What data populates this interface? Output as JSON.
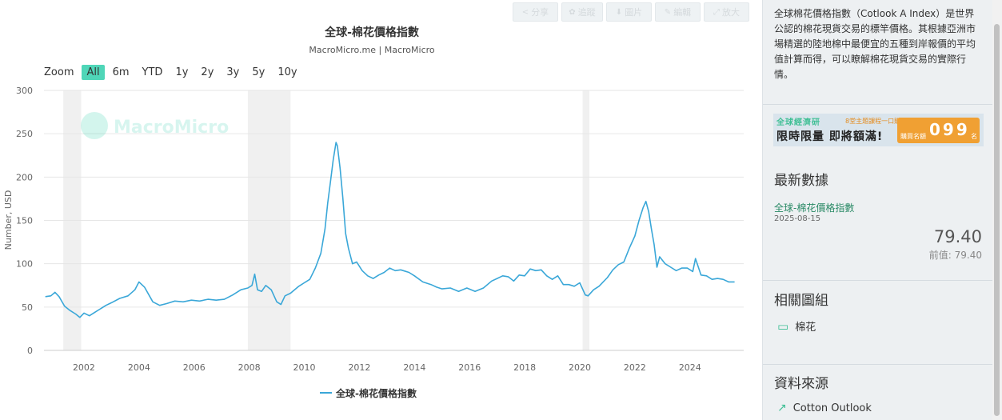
{
  "toolbar": {
    "buttons": [
      {
        "label": "分享",
        "icon": "share-icon"
      },
      {
        "label": "追蹤",
        "icon": "gear-icon"
      },
      {
        "label": "圖片",
        "icon": "download-icon"
      },
      {
        "label": "編輯",
        "icon": "pencil-icon"
      },
      {
        "label": "放大",
        "icon": "expand-icon"
      }
    ]
  },
  "zoom": {
    "label": "Zoom",
    "options": [
      "All",
      "6m",
      "YTD",
      "1y",
      "2y",
      "3y",
      "5y",
      "10y"
    ],
    "active": "All"
  },
  "watermark": "MacroMicro",
  "colors": {
    "line": "#3aa7d8",
    "accent": "#4fd6b8",
    "recession": "#f0f0f0",
    "latest": "#2a8a66"
  },
  "chart_data": {
    "type": "line",
    "title": "全球-棉花價格指數",
    "subtitle": "MacroMicro.me | MacroMicro",
    "ylabel": "Number, USD",
    "xlabel": "",
    "ylim": [
      0,
      300
    ],
    "yticks": [
      0,
      50,
      100,
      150,
      200,
      250,
      300
    ],
    "xlim": [
      2000.55,
      2025.95
    ],
    "xticks": [
      "2002",
      "2004",
      "2006",
      "2008",
      "2010",
      "2012",
      "2014",
      "2016",
      "2018",
      "2020",
      "2022",
      "2024"
    ],
    "grid": true,
    "legend": "bottom-center",
    "recession_bands": [
      [
        2001.25,
        2001.9
      ],
      [
        2007.95,
        2009.5
      ],
      [
        2020.1,
        2020.35
      ]
    ],
    "series": [
      {
        "name": "全球-棉花價格指數",
        "x": [
          2000.6,
          2000.8,
          2000.95,
          2001.1,
          2001.3,
          2001.5,
          2001.7,
          2001.85,
          2002.0,
          2002.2,
          2002.4,
          2002.6,
          2002.8,
          2003.0,
          2003.3,
          2003.6,
          2003.85,
          2004.0,
          2004.2,
          2004.5,
          2004.75,
          2005.0,
          2005.3,
          2005.6,
          2005.9,
          2006.2,
          2006.5,
          2006.8,
          2007.1,
          2007.4,
          2007.7,
          2007.95,
          2008.1,
          2008.2,
          2008.3,
          2008.45,
          2008.6,
          2008.8,
          2009.0,
          2009.15,
          2009.3,
          2009.5,
          2009.8,
          2010.0,
          2010.2,
          2010.4,
          2010.6,
          2010.75,
          2010.85,
          2010.95,
          2011.05,
          2011.15,
          2011.2,
          2011.3,
          2011.4,
          2011.5,
          2011.6,
          2011.75,
          2011.9,
          2012.1,
          2012.3,
          2012.5,
          2012.7,
          2012.9,
          2013.1,
          2013.3,
          2013.5,
          2013.8,
          2014.0,
          2014.3,
          2014.6,
          2014.8,
          2015.0,
          2015.3,
          2015.6,
          2015.9,
          2016.2,
          2016.5,
          2016.8,
          2017.0,
          2017.2,
          2017.4,
          2017.6,
          2017.8,
          2018.0,
          2018.2,
          2018.4,
          2018.6,
          2018.8,
          2019.0,
          2019.2,
          2019.4,
          2019.6,
          2019.8,
          2020.0,
          2020.2,
          2020.3,
          2020.5,
          2020.7,
          2021.0,
          2021.2,
          2021.4,
          2021.6,
          2021.8,
          2022.0,
          2022.15,
          2022.3,
          2022.4,
          2022.5,
          2022.6,
          2022.7,
          2022.8,
          2022.9,
          2023.1,
          2023.3,
          2023.5,
          2023.7,
          2023.9,
          2024.1,
          2024.2,
          2024.4,
          2024.6,
          2024.8,
          2025.0,
          2025.2,
          2025.4,
          2025.62
        ],
        "values": [
          62,
          63,
          67,
          62,
          51,
          46,
          42,
          38,
          43,
          40,
          44,
          48,
          52,
          55,
          60,
          63,
          70,
          79,
          73,
          56,
          52,
          54,
          57,
          56,
          58,
          57,
          59,
          58,
          59,
          64,
          70,
          72,
          75,
          88,
          70,
          68,
          75,
          70,
          56,
          53,
          63,
          66,
          74,
          78,
          82,
          95,
          112,
          140,
          170,
          195,
          220,
          240,
          236,
          210,
          175,
          135,
          118,
          100,
          102,
          92,
          86,
          83,
          87,
          90,
          95,
          92,
          93,
          90,
          86,
          79,
          76,
          73,
          71,
          72,
          68,
          72,
          68,
          72,
          80,
          83,
          86,
          85,
          80,
          87,
          86,
          94,
          92,
          93,
          86,
          82,
          86,
          76,
          76,
          74,
          78,
          64,
          63,
          70,
          74,
          84,
          93,
          99,
          102,
          118,
          132,
          150,
          165,
          172,
          160,
          140,
          122,
          96,
          108,
          100,
          96,
          92,
          95,
          95,
          91,
          106,
          87,
          86,
          82,
          83,
          82,
          79,
          79
        ]
      }
    ]
  },
  "sidebar": {
    "description": "全球棉花價格指數（Cotlook A Index）是世界公認的棉花現貨交易的標竿價格。其根據亞洲市場精選的陸地棉中最便宜的五種到岸報價的平均值計算而得，可以瞭解棉花現貨交易的實際行情。",
    "banner": {
      "line1": "全球經濟研",
      "line1_small": "8堂主題課程一口購",
      "line2": "限時限量 即將額滿!",
      "counter_label": "購買名額",
      "counter": "099",
      "counter_unit": "名"
    },
    "latest": {
      "heading": "最新數據",
      "series_name": "全球-棉花價格指數",
      "date": "2025-08-15",
      "value": "79.40",
      "prev_label": "前值:",
      "prev_value": "79.40"
    },
    "related": {
      "heading": "相關圖組",
      "item": "棉花"
    },
    "source": {
      "heading": "資料來源",
      "item": "Cotton Outlook"
    }
  }
}
